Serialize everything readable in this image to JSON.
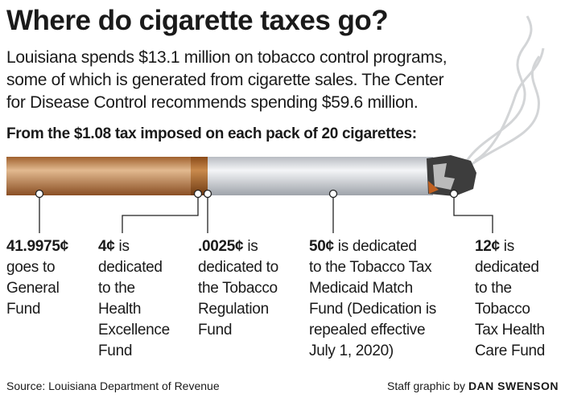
{
  "title": "Where do cigarette taxes go?",
  "lead": [
    "Louisiana spends $13.1 million on tobacco control programs,",
    "some of which is generated from cigarette sales. The Center",
    "for Disease Control recommends spending $59.6 million."
  ],
  "subhead": "From the $1.08 tax imposed on each pack of 20 cigarettes:",
  "items": [
    {
      "amount": "41.9975¢",
      "amount_own_line": true,
      "lines": [
        "goes to",
        "General",
        "Fund"
      ]
    },
    {
      "amount": "4¢",
      "lines": [
        "is",
        "dedicated",
        "to the",
        "Health",
        "Excellence",
        "Fund"
      ]
    },
    {
      "amount": ".0025¢",
      "lines": [
        "is",
        "dedicated to",
        "the Tobacco",
        "Regulation",
        "Fund"
      ]
    },
    {
      "amount": "50¢",
      "lines": [
        "is dedicated",
        "to the Tobacco Tax",
        "Medicaid Match",
        "Fund (Dedication is",
        "repealed effective",
        "July 1, 2020)"
      ]
    },
    {
      "amount": "12¢",
      "lines": [
        "is",
        "dedicated",
        "to the",
        "Tobacco",
        "Tax Health",
        "Care Fund"
      ]
    }
  ],
  "source": "Source: Louisiana Department of Revenue",
  "credit": {
    "prefix": "Staff graphic by",
    "name": "DAN SWENSON"
  }
}
